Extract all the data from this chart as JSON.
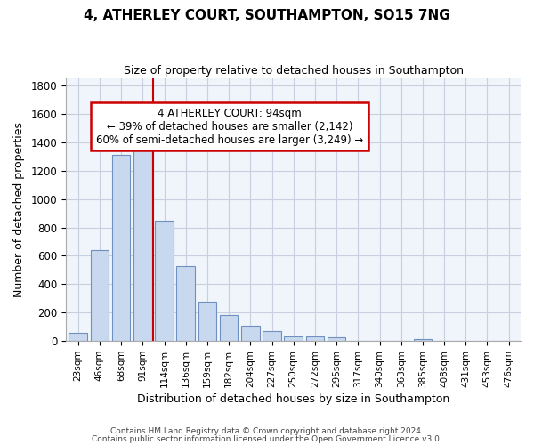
{
  "title1": "4, ATHERLEY COURT, SOUTHAMPTON, SO15 7NG",
  "title2": "Size of property relative to detached houses in Southampton",
  "xlabel": "Distribution of detached houses by size in Southampton",
  "ylabel": "Number of detached properties",
  "categories": [
    "23sqm",
    "46sqm",
    "68sqm",
    "91sqm",
    "114sqm",
    "136sqm",
    "159sqm",
    "182sqm",
    "204sqm",
    "227sqm",
    "250sqm",
    "272sqm",
    "295sqm",
    "317sqm",
    "340sqm",
    "363sqm",
    "385sqm",
    "408sqm",
    "431sqm",
    "453sqm",
    "476sqm"
  ],
  "values": [
    55,
    640,
    1310,
    1380,
    850,
    530,
    280,
    185,
    105,
    70,
    35,
    30,
    25,
    0,
    0,
    0,
    15,
    0,
    0,
    0,
    0
  ],
  "bar_color": "#c8d8ee",
  "bar_edgecolor": "#7090c0",
  "grid_color": "#c8d0e0",
  "background_color": "#f0f4fb",
  "red_line_x": 3.5,
  "annotation_text": "4 ATHERLEY COURT: 94sqm\n← 39% of detached houses are smaller (2,142)\n60% of semi-detached houses are larger (3,249) →",
  "annotation_box_facecolor": "#ffffff",
  "annotation_box_edgecolor": "#cc0000",
  "red_line_color": "#cc0000",
  "ylim": [
    0,
    1850
  ],
  "yticks": [
    0,
    200,
    400,
    600,
    800,
    1000,
    1200,
    1400,
    1600,
    1800
  ],
  "footer1": "Contains HM Land Registry data © Crown copyright and database right 2024.",
  "footer2": "Contains public sector information licensed under the Open Government Licence v3.0."
}
